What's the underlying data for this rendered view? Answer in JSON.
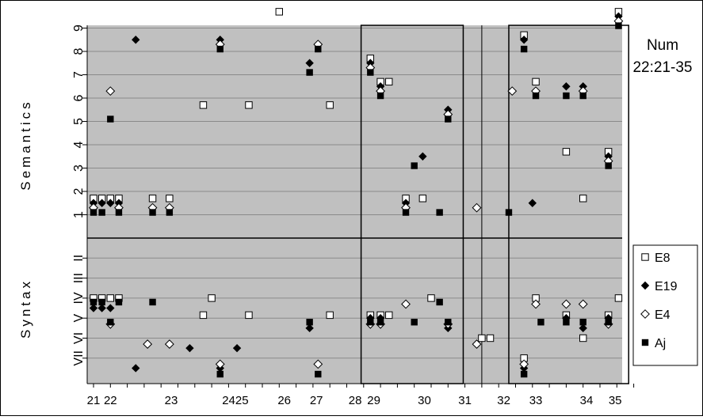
{
  "chart_data": {
    "type": "scatter",
    "title": "Num",
    "subtitle": "22:21-35",
    "ylabel_top": "Semantics",
    "ylabel_bottom": "Syntax",
    "semantic_ticks": [
      "1",
      "2",
      "3",
      "4",
      "5",
      "6",
      "7",
      "8",
      "9"
    ],
    "syntax_ticks": [
      "II",
      "III",
      "IV",
      "V",
      "VI",
      "VII"
    ],
    "x_ticks": [
      {
        "label": "21",
        "x": 0
      },
      {
        "label": "22",
        "x": 1
      },
      {
        "label": "23",
        "x": 4.6
      },
      {
        "label": "2425",
        "x": 8.4
      },
      {
        "label": "26",
        "x": 11.3
      },
      {
        "label": "27",
        "x": 13.2
      },
      {
        "label": "28",
        "x": 15.5
      },
      {
        "label": "29",
        "x": 16.6
      },
      {
        "label": "30",
        "x": 19.6
      },
      {
        "label": "31",
        "x": 22.0
      },
      {
        "label": "32",
        "x": 24.3
      },
      {
        "label": "33",
        "x": 26.2
      },
      {
        "label": "34",
        "x": 29.2
      },
      {
        "label": "35",
        "x": 30.9
      }
    ],
    "highlight_boxes": [
      [
        15.85,
        21.9
      ],
      [
        24.6,
        31.7
      ]
    ],
    "legend": [
      {
        "name": "E8",
        "marker": "square-open"
      },
      {
        "name": "E19",
        "marker": "diamond-filled"
      },
      {
        "name": "E4",
        "marker": "diamond-open"
      },
      {
        "name": "Aj",
        "marker": "square-filled"
      }
    ],
    "series": [
      {
        "name": "E8",
        "marker": "square-open",
        "semantics": [
          [
            0,
            1.7
          ],
          [
            0.5,
            1.7
          ],
          [
            1,
            1.7
          ],
          [
            1.5,
            1.7
          ],
          [
            3.5,
            1.7
          ],
          [
            4.5,
            1.7
          ],
          [
            6.5,
            5.7
          ],
          [
            9.2,
            5.7
          ],
          [
            11,
            9.7
          ],
          [
            14,
            5.7
          ],
          [
            16.4,
            7.7
          ],
          [
            17,
            6.7
          ],
          [
            17.5,
            6.7
          ],
          [
            18.5,
            1.7
          ],
          [
            19.5,
            1.7
          ],
          [
            25.5,
            8.7
          ],
          [
            26.2,
            6.7
          ],
          [
            28,
            3.7
          ],
          [
            29,
            1.7
          ],
          [
            30.5,
            3.7
          ],
          [
            31.1,
            9.7
          ]
        ],
        "syntax": [
          [
            0,
            3.0
          ],
          [
            0.5,
            3.0
          ],
          [
            1,
            3.0
          ],
          [
            1.5,
            3.0
          ],
          [
            6.5,
            3.85
          ],
          [
            7,
            3.0
          ],
          [
            9.2,
            3.85
          ],
          [
            14,
            3.85
          ],
          [
            16.4,
            3.85
          ],
          [
            17,
            3.85
          ],
          [
            17.5,
            3.85
          ],
          [
            20,
            3.0
          ],
          [
            23,
            5.0
          ],
          [
            23.5,
            5.0
          ],
          [
            25.5,
            6.0
          ],
          [
            26.2,
            3.0
          ],
          [
            28,
            3.85
          ],
          [
            29,
            5.0
          ],
          [
            30.5,
            3.85
          ],
          [
            31.1,
            3.0
          ]
        ]
      },
      {
        "name": "E19",
        "marker": "diamond-filled",
        "semantics": [
          [
            0,
            1.5
          ],
          [
            0.5,
            1.5
          ],
          [
            1,
            1.5
          ],
          [
            1.5,
            1.5
          ],
          [
            2.5,
            8.5
          ],
          [
            7.5,
            8.5
          ],
          [
            12.8,
            7.5
          ],
          [
            16.4,
            7.5
          ],
          [
            17,
            6.5
          ],
          [
            18.5,
            1.5
          ],
          [
            19.5,
            3.5
          ],
          [
            21,
            5.5
          ],
          [
            25.5,
            8.5
          ],
          [
            26,
            1.5
          ],
          [
            28,
            6.5
          ],
          [
            29,
            6.5
          ],
          [
            30.5,
            3.5
          ],
          [
            31.1,
            9.5
          ]
        ],
        "syntax": [
          [
            0,
            3.5
          ],
          [
            0.5,
            3.5
          ],
          [
            1,
            3.5
          ],
          [
            2.5,
            6.5
          ],
          [
            5.7,
            5.5
          ],
          [
            7.5,
            6.5
          ],
          [
            8.5,
            5.5
          ],
          [
            12.8,
            4.5
          ],
          [
            16.4,
            4.0
          ],
          [
            17,
            4.0
          ],
          [
            21,
            4.5
          ],
          [
            25.5,
            6.5
          ],
          [
            28,
            4.0
          ],
          [
            29,
            4.5
          ],
          [
            30.5,
            4.0
          ]
        ]
      },
      {
        "name": "E4",
        "marker": "diamond-open",
        "semantics": [
          [
            0,
            1.3
          ],
          [
            1,
            6.3
          ],
          [
            1.5,
            1.3
          ],
          [
            3.5,
            1.3
          ],
          [
            4.5,
            1.3
          ],
          [
            7.5,
            8.3
          ],
          [
            13.3,
            8.3
          ],
          [
            16.4,
            7.3
          ],
          [
            17,
            6.3
          ],
          [
            18.5,
            1.3
          ],
          [
            21,
            5.3
          ],
          [
            22.7,
            1.3
          ],
          [
            24.8,
            6.3
          ],
          [
            26.2,
            6.3
          ],
          [
            29,
            6.3
          ],
          [
            30.5,
            3.3
          ],
          [
            31.1,
            9.3
          ]
        ],
        "syntax": [
          [
            1,
            4.3
          ],
          [
            3.2,
            5.3
          ],
          [
            4.5,
            5.3
          ],
          [
            7.5,
            6.3
          ],
          [
            13.3,
            6.3
          ],
          [
            16.4,
            4.3
          ],
          [
            17,
            4.3
          ],
          [
            18.5,
            3.3
          ],
          [
            21,
            4.3
          ],
          [
            22.7,
            5.3
          ],
          [
            25.5,
            6.3
          ],
          [
            26.2,
            3.3
          ],
          [
            28,
            3.3
          ],
          [
            29,
            3.3
          ],
          [
            30.5,
            4.3
          ]
        ]
      },
      {
        "name": "Aj",
        "marker": "square-filled",
        "semantics": [
          [
            0,
            1.1
          ],
          [
            0.5,
            1.1
          ],
          [
            1,
            5.1
          ],
          [
            1.5,
            1.1
          ],
          [
            3.5,
            1.1
          ],
          [
            4.5,
            1.1
          ],
          [
            7.5,
            8.1
          ],
          [
            12.8,
            7.1
          ],
          [
            13.3,
            8.1
          ],
          [
            16.4,
            7.1
          ],
          [
            17,
            6.1
          ],
          [
            18.5,
            1.1
          ],
          [
            19,
            3.1
          ],
          [
            20.5,
            1.1
          ],
          [
            21,
            5.1
          ],
          [
            24.6,
            1.1
          ],
          [
            25.5,
            8.1
          ],
          [
            26.2,
            6.1
          ],
          [
            28,
            6.1
          ],
          [
            29,
            6.1
          ],
          [
            30.5,
            3.1
          ],
          [
            31.1,
            9.1
          ]
        ],
        "syntax": [
          [
            0,
            3.2
          ],
          [
            0.5,
            3.2
          ],
          [
            1,
            4.2
          ],
          [
            1.5,
            3.2
          ],
          [
            3.5,
            3.2
          ],
          [
            7.5,
            6.8
          ],
          [
            12.8,
            4.2
          ],
          [
            13.3,
            6.8
          ],
          [
            16.4,
            4.2
          ],
          [
            17,
            4.2
          ],
          [
            19,
            4.2
          ],
          [
            20.5,
            3.2
          ],
          [
            21,
            4.2
          ],
          [
            25.5,
            6.8
          ],
          [
            26.5,
            4.2
          ],
          [
            28,
            4.2
          ],
          [
            29,
            4.2
          ],
          [
            30.5,
            4.2
          ]
        ]
      }
    ]
  }
}
